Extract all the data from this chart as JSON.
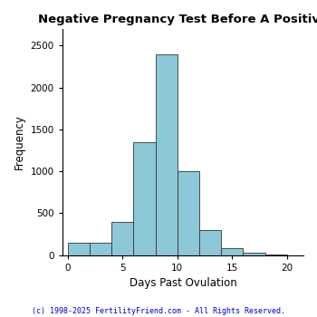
{
  "title": "Negative Pregnancy Test Before A Positive",
  "xlabel": "Days Past Ovulation",
  "ylabel": "Frequency",
  "bar_color": "#8DC8D8",
  "bar_edge_color": "#333333",
  "background_color": "#ffffff",
  "bins": [
    0,
    2,
    4,
    6,
    8,
    10,
    12,
    14,
    16,
    18,
    20
  ],
  "heights": [
    150,
    150,
    400,
    1350,
    2400,
    1000,
    300,
    80,
    30,
    5
  ],
  "xlim": [
    -0.5,
    21.5
  ],
  "ylim": [
    0,
    2700
  ],
  "yticks": [
    0,
    500,
    1000,
    1500,
    2000,
    2500
  ],
  "xticks": [
    0,
    5,
    10,
    15,
    20
  ],
  "title_fontsize": 9.5,
  "axis_label_fontsize": 8.5,
  "tick_fontsize": 7.5,
  "footer_text": "(c) 1998-2025 FertilityFriend.com - All Rights Reserved.",
  "footer_color": "#0000cc",
  "footer_fontsize": 6.0,
  "fig_width": 3.5,
  "fig_height": 3.5,
  "dpi": 100
}
